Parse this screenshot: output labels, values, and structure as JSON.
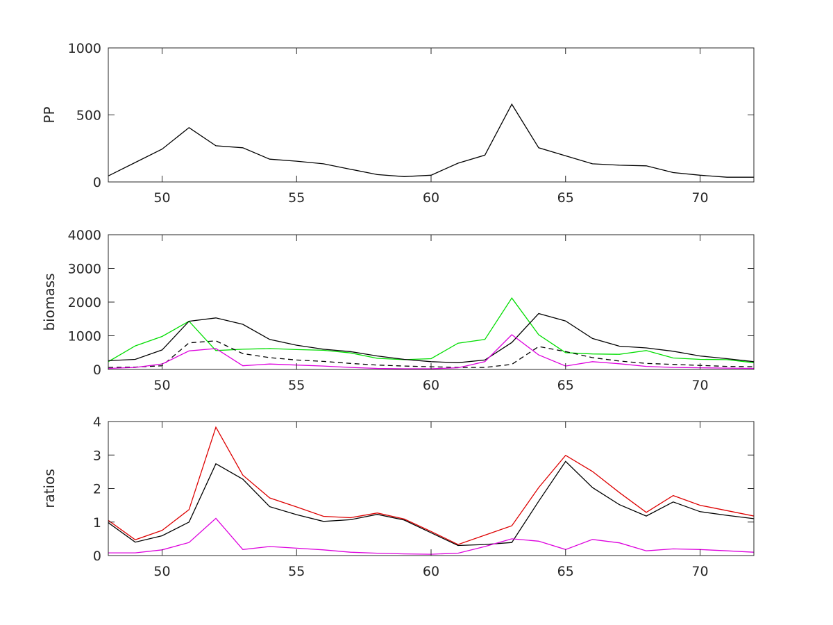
{
  "chart_data": [
    {
      "type": "line",
      "ylabel": "PP",
      "xlim": [
        48,
        72
      ],
      "ylim": [
        0,
        1000
      ],
      "xticks": [
        50,
        55,
        60,
        65,
        70
      ],
      "yticks": [
        0,
        500,
        1000
      ],
      "grid": false,
      "series": [
        {
          "color": "#000000",
          "dash": "solid",
          "x": [
            48,
            49,
            50,
            51,
            52,
            53,
            54,
            55,
            56,
            57,
            58,
            59,
            60,
            61,
            62,
            63,
            64,
            65,
            66,
            67,
            68,
            69,
            70,
            71,
            72
          ],
          "y": [
            45,
            145,
            245,
            405,
            270,
            255,
            170,
            155,
            135,
            95,
            55,
            40,
            50,
            140,
            200,
            580,
            255,
            195,
            135,
            125,
            120,
            70,
            50,
            35,
            35
          ]
        }
      ]
    },
    {
      "type": "line",
      "ylabel": "biomass",
      "xlim": [
        48,
        72
      ],
      "ylim": [
        0,
        4000
      ],
      "xticks": [
        50,
        55,
        60,
        65,
        70
      ],
      "yticks": [
        0,
        1000,
        2000,
        3000,
        4000
      ],
      "grid": false,
      "series": [
        {
          "color": "#00dd00",
          "dash": "solid",
          "x": [
            48,
            49,
            50,
            51,
            52,
            53,
            54,
            55,
            56,
            57,
            58,
            59,
            60,
            61,
            62,
            63,
            64,
            65,
            66,
            67,
            68,
            69,
            70,
            71,
            72
          ],
          "y": [
            230,
            700,
            980,
            1430,
            560,
            600,
            620,
            590,
            570,
            490,
            330,
            290,
            320,
            780,
            890,
            2120,
            1030,
            500,
            460,
            450,
            560,
            340,
            300,
            290,
            200
          ]
        },
        {
          "color": "#000000",
          "dash": "solid",
          "x": [
            48,
            49,
            50,
            51,
            52,
            53,
            54,
            55,
            56,
            57,
            58,
            59,
            60,
            61,
            62,
            63,
            64,
            65,
            66,
            67,
            68,
            69,
            70,
            71,
            72
          ],
          "y": [
            260,
            300,
            580,
            1430,
            1530,
            1340,
            890,
            720,
            600,
            530,
            400,
            300,
            230,
            200,
            280,
            800,
            1660,
            1440,
            920,
            690,
            640,
            540,
            400,
            320,
            230
          ]
        },
        {
          "color": "#000000",
          "dash": "dashed",
          "x": [
            48,
            49,
            50,
            51,
            52,
            53,
            54,
            55,
            56,
            57,
            58,
            59,
            60,
            61,
            62,
            63,
            64,
            65,
            66,
            67,
            68,
            69,
            70,
            71,
            72
          ],
          "y": [
            60,
            70,
            110,
            790,
            850,
            470,
            350,
            280,
            240,
            180,
            130,
            100,
            80,
            60,
            60,
            150,
            680,
            530,
            350,
            250,
            180,
            150,
            120,
            90,
            80
          ]
        },
        {
          "color": "#dd00dd",
          "dash": "solid",
          "x": [
            48,
            49,
            50,
            51,
            52,
            53,
            54,
            55,
            56,
            57,
            58,
            59,
            60,
            61,
            62,
            63,
            64,
            65,
            66,
            67,
            68,
            69,
            70,
            71,
            72
          ],
          "y": [
            30,
            60,
            160,
            550,
            620,
            110,
            160,
            130,
            100,
            60,
            30,
            20,
            20,
            50,
            230,
            1030,
            430,
            100,
            230,
            170,
            90,
            60,
            50,
            40,
            30
          ]
        }
      ]
    },
    {
      "type": "line",
      "ylabel": "ratios",
      "xlim": [
        48,
        72
      ],
      "ylim": [
        0,
        4
      ],
      "xticks": [
        50,
        55,
        60,
        65,
        70
      ],
      "yticks": [
        0,
        1,
        2,
        3,
        4
      ],
      "grid": false,
      "series": [
        {
          "color": "#dd0000",
          "dash": "solid",
          "x": [
            48,
            49,
            50,
            51,
            52,
            53,
            54,
            55,
            56,
            57,
            58,
            59,
            60,
            61,
            62,
            63,
            64,
            65,
            66,
            67,
            68,
            69,
            70,
            71,
            72
          ],
          "y": [
            1.05,
            0.47,
            0.75,
            1.37,
            3.83,
            2.4,
            1.72,
            1.45,
            1.17,
            1.13,
            1.27,
            1.09,
            0.72,
            0.33,
            0.61,
            0.89,
            2.03,
            2.99,
            2.51,
            1.88,
            1.29,
            1.79,
            1.5,
            1.34,
            1.18
          ]
        },
        {
          "color": "#000000",
          "dash": "solid",
          "x": [
            48,
            49,
            50,
            51,
            52,
            53,
            54,
            55,
            56,
            57,
            58,
            59,
            60,
            61,
            62,
            63,
            64,
            65,
            66,
            67,
            68,
            69,
            70,
            71,
            72
          ],
          "y": [
            0.98,
            0.4,
            0.59,
            1.0,
            2.74,
            2.28,
            1.46,
            1.22,
            1.02,
            1.07,
            1.23,
            1.06,
            0.68,
            0.3,
            0.33,
            0.39,
            1.62,
            2.81,
            2.03,
            1.52,
            1.18,
            1.6,
            1.31,
            1.2,
            1.1
          ]
        },
        {
          "color": "#dd00dd",
          "dash": "solid",
          "x": [
            48,
            49,
            50,
            51,
            52,
            53,
            54,
            55,
            56,
            57,
            58,
            59,
            60,
            61,
            62,
            63,
            64,
            65,
            66,
            67,
            68,
            69,
            70,
            71,
            72
          ],
          "y": [
            0.08,
            0.08,
            0.17,
            0.39,
            1.11,
            0.18,
            0.27,
            0.22,
            0.17,
            0.1,
            0.07,
            0.05,
            0.04,
            0.07,
            0.27,
            0.5,
            0.43,
            0.18,
            0.48,
            0.38,
            0.14,
            0.2,
            0.18,
            0.14,
            0.1
          ]
        }
      ]
    }
  ]
}
